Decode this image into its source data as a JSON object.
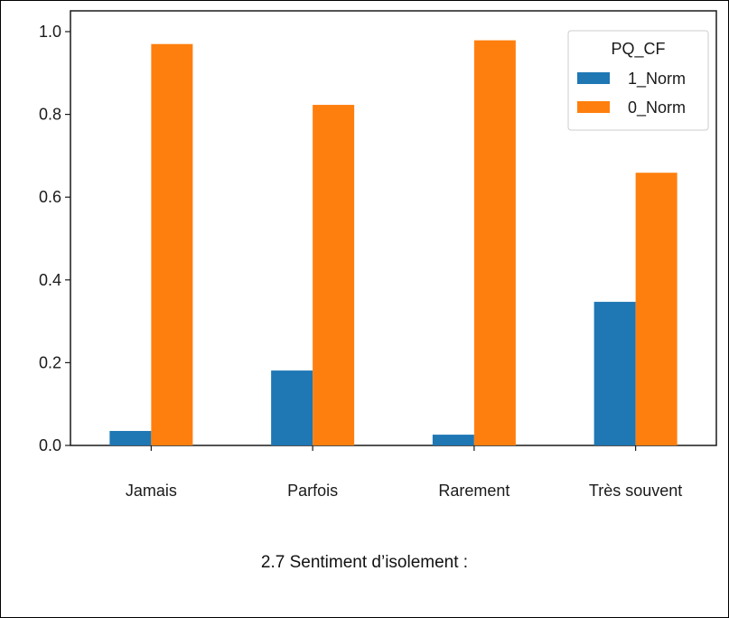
{
  "chart_data": {
    "type": "bar",
    "categories": [
      "Jamais",
      "Parfois",
      "Rarement",
      "Très souvent"
    ],
    "series": [
      {
        "name": "1_Norm",
        "color": "#1f77b4",
        "values": [
          0.035,
          0.181,
          0.026,
          0.347
        ]
      },
      {
        "name": "0_Norm",
        "color": "#ff7f0e",
        "values": [
          0.97,
          0.823,
          0.979,
          0.659
        ]
      }
    ],
    "ylim": [
      0.0,
      1.0
    ],
    "yticks": [
      "0.0",
      "0.2",
      "0.4",
      "0.6",
      "0.8",
      "1.0"
    ],
    "ytick_values": [
      0.0,
      0.2,
      0.4,
      0.6,
      0.8,
      1.0
    ],
    "legend": {
      "title": "PQ_CF",
      "placement": "top-right"
    },
    "grid": false
  },
  "caption": "2.7 Sentiment d’isolement :"
}
